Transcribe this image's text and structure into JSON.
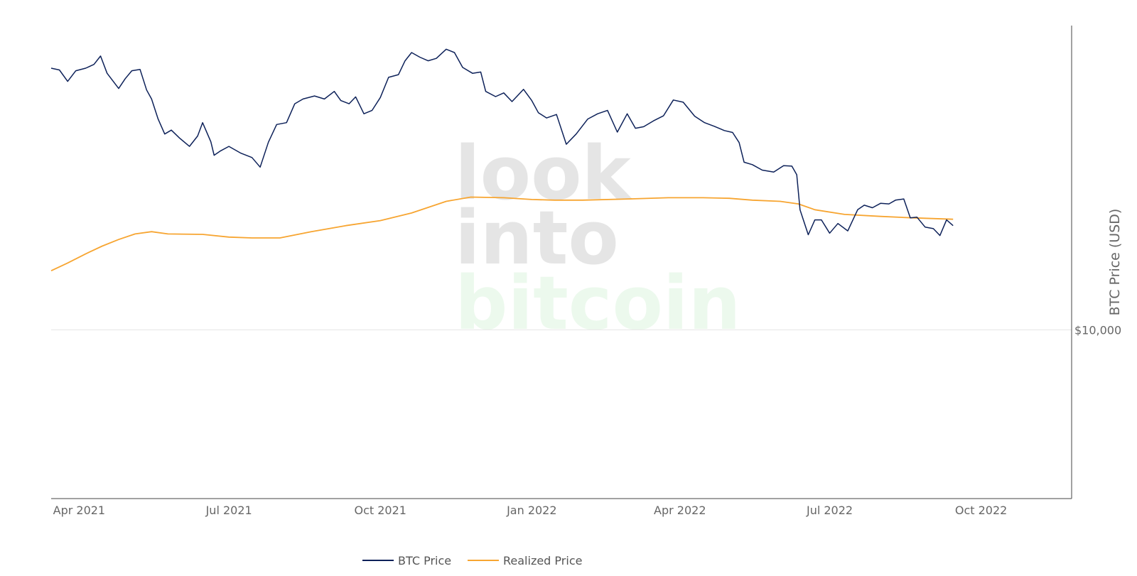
{
  "watermark": {
    "line1": "look",
    "line2": "into",
    "line3": "bitcoin"
  },
  "chart_data": {
    "type": "line",
    "title": "",
    "xlabel": "",
    "ylabel": "BTC Price (USD)",
    "y_axis_side": "right",
    "y_scale": "log",
    "ylim": [
      3200,
      78000
    ],
    "xlim": [
      "2021-03-15",
      "2022-11-25"
    ],
    "x_ticks": [
      {
        "date": "2021-04-01",
        "label": "Apr 2021"
      },
      {
        "date": "2021-07-01",
        "label": "Jul 2021"
      },
      {
        "date": "2021-10-01",
        "label": "Oct 2021"
      },
      {
        "date": "2022-01-01",
        "label": "Jan 2022"
      },
      {
        "date": "2022-04-01",
        "label": "Apr 2022"
      },
      {
        "date": "2022-07-01",
        "label": "Jul 2022"
      },
      {
        "date": "2022-10-01",
        "label": "Oct 2022"
      }
    ],
    "y_ticks": [
      {
        "value": 10000,
        "label": "$10,000"
      }
    ],
    "grid": "horizontal",
    "legend_position": "bottom-center",
    "colors": {
      "btc_price": "#0d2159",
      "realized_price": "#f7a531"
    },
    "series": [
      {
        "name": "BTC Price",
        "color": "#0d2159",
        "x": [
          "2021-03-15",
          "2021-03-20",
          "2021-03-25",
          "2021-03-30",
          "2021-04-05",
          "2021-04-10",
          "2021-04-14",
          "2021-04-18",
          "2021-04-25",
          "2021-04-29",
          "2021-05-03",
          "2021-05-08",
          "2021-05-12",
          "2021-05-15",
          "2021-05-19",
          "2021-05-23",
          "2021-05-27",
          "2021-06-01",
          "2021-06-07",
          "2021-06-12",
          "2021-06-15",
          "2021-06-20",
          "2021-06-22",
          "2021-06-26",
          "2021-07-01",
          "2021-07-08",
          "2021-07-15",
          "2021-07-20",
          "2021-07-25",
          "2021-07-30",
          "2021-08-05",
          "2021-08-10",
          "2021-08-15",
          "2021-08-22",
          "2021-08-28",
          "2021-09-03",
          "2021-09-07",
          "2021-09-12",
          "2021-09-16",
          "2021-09-21",
          "2021-09-26",
          "2021-10-01",
          "2021-10-06",
          "2021-10-12",
          "2021-10-16",
          "2021-10-20",
          "2021-10-25",
          "2021-10-30",
          "2021-11-04",
          "2021-11-10",
          "2021-11-15",
          "2021-11-20",
          "2021-11-26",
          "2021-12-01",
          "2021-12-04",
          "2021-12-10",
          "2021-12-15",
          "2021-12-20",
          "2021-12-27",
          "2022-01-01",
          "2022-01-05",
          "2022-01-10",
          "2022-01-16",
          "2022-01-22",
          "2022-01-28",
          "2022-02-04",
          "2022-02-10",
          "2022-02-16",
          "2022-02-22",
          "2022-02-28",
          "2022-03-05",
          "2022-03-10",
          "2022-03-16",
          "2022-03-22",
          "2022-03-28",
          "2022-04-03",
          "2022-04-10",
          "2022-04-16",
          "2022-04-22",
          "2022-04-28",
          "2022-05-03",
          "2022-05-07",
          "2022-05-10",
          "2022-05-15",
          "2022-05-21",
          "2022-05-28",
          "2022-06-03",
          "2022-06-08",
          "2022-06-11",
          "2022-06-13",
          "2022-06-15",
          "2022-06-18",
          "2022-06-22",
          "2022-06-26",
          "2022-07-01",
          "2022-07-06",
          "2022-07-12",
          "2022-07-18",
          "2022-07-22",
          "2022-07-27",
          "2022-08-01",
          "2022-08-06",
          "2022-08-10",
          "2022-08-15",
          "2022-08-19",
          "2022-08-23",
          "2022-08-28",
          "2022-09-02",
          "2022-09-06",
          "2022-09-10",
          "2022-09-14"
        ],
        "values": [
          58500,
          57800,
          53500,
          57500,
          58500,
          60000,
          63500,
          56500,
          51000,
          54500,
          57500,
          58000,
          50500,
          47500,
          41500,
          37500,
          38500,
          36500,
          34500,
          37000,
          40500,
          35600,
          32500,
          33500,
          34500,
          33000,
          32000,
          30000,
          35500,
          40000,
          40500,
          46000,
          47500,
          48500,
          47500,
          50000,
          47000,
          46000,
          48200,
          43000,
          44000,
          48000,
          55000,
          56000,
          61500,
          65000,
          63000,
          61500,
          62500,
          66500,
          65000,
          58800,
          56500,
          57000,
          50000,
          48300,
          49500,
          46700,
          50700,
          47000,
          43300,
          41800,
          42800,
          35000,
          37500,
          41500,
          43000,
          44000,
          38000,
          43000,
          39000,
          39400,
          41000,
          42400,
          47200,
          46500,
          42300,
          40500,
          39500,
          38400,
          37900,
          35400,
          31000,
          30500,
          29400,
          29000,
          30300,
          30200,
          28500,
          22500,
          21000,
          19000,
          21000,
          21000,
          19200,
          20500,
          19500,
          22500,
          23200,
          22800,
          23500,
          23400,
          24000,
          24200,
          21300,
          21400,
          20000,
          19800,
          18900,
          21000,
          20200
        ]
      },
      {
        "name": "Realized Price",
        "color": "#f7a531",
        "x": [
          "2021-03-15",
          "2021-03-25",
          "2021-04-05",
          "2021-04-15",
          "2021-04-25",
          "2021-05-05",
          "2021-05-15",
          "2021-05-25",
          "2021-06-15",
          "2021-07-01",
          "2021-07-15",
          "2021-08-01",
          "2021-08-20",
          "2021-09-10",
          "2021-10-01",
          "2021-10-20",
          "2021-11-10",
          "2021-11-25",
          "2021-12-15",
          "2022-01-01",
          "2022-01-15",
          "2022-02-01",
          "2022-03-01",
          "2022-03-25",
          "2022-04-15",
          "2022-05-01",
          "2022-05-15",
          "2022-06-01",
          "2022-06-12",
          "2022-06-22",
          "2022-07-10",
          "2022-08-01",
          "2022-08-20",
          "2022-09-14"
        ],
        "values": [
          14900,
          15700,
          16700,
          17600,
          18400,
          19100,
          19400,
          19100,
          19050,
          18700,
          18600,
          18600,
          19400,
          20200,
          20900,
          22000,
          23800,
          24500,
          24400,
          24100,
          24000,
          24000,
          24200,
          24400,
          24400,
          24300,
          24000,
          23800,
          23400,
          22500,
          21800,
          21500,
          21300,
          21100
        ]
      }
    ]
  }
}
